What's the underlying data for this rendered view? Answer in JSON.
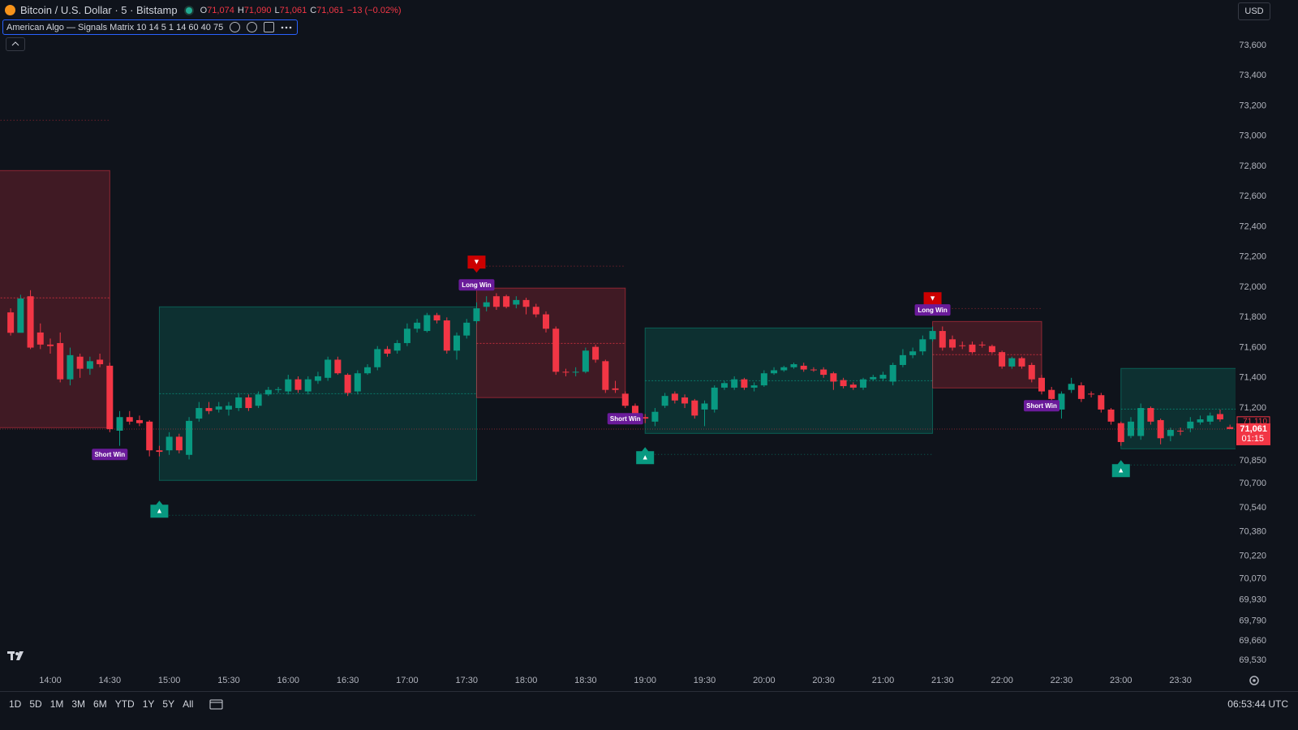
{
  "header": {
    "symbol": "Bitcoin / U.S. Dollar · 5 · Bitstamp",
    "ohlc": [
      {
        "key": "O",
        "value": "71,074"
      },
      {
        "key": "H",
        "value": "71,090"
      },
      {
        "key": "L",
        "value": "71,061"
      },
      {
        "key": "C",
        "value": "71,061"
      }
    ],
    "change": "−13 (−0.02%)",
    "indicator": "American Algo — Signals Matrix 10 14 5 1 14 60 40 75",
    "currency": "USD"
  },
  "footer": {
    "periods": [
      "1D",
      "5D",
      "1M",
      "3M",
      "6M",
      "YTD",
      "1Y",
      "5Y",
      "All"
    ],
    "clock": "06:53:44 UTC"
  },
  "chart_data": {
    "type": "candlestick",
    "up_color": "#089981",
    "down_color": "#f23645",
    "x": [
      "13:40",
      "13:45",
      "13:50",
      "13:55",
      "14:00",
      "14:05",
      "14:10",
      "14:15",
      "14:20",
      "14:25",
      "14:30",
      "14:35",
      "14:40",
      "14:45",
      "14:50",
      "14:55",
      "15:00",
      "15:05",
      "15:10",
      "15:15",
      "15:20",
      "15:25",
      "15:30",
      "15:35",
      "15:40",
      "15:45",
      "15:50",
      "15:55",
      "16:00",
      "16:05",
      "16:10",
      "16:15",
      "16:20",
      "16:25",
      "16:30",
      "16:35",
      "16:40",
      "16:45",
      "16:50",
      "16:55",
      "17:00",
      "17:05",
      "17:10",
      "17:15",
      "17:20",
      "17:25",
      "17:30",
      "17:35",
      "17:40",
      "17:45",
      "17:50",
      "17:55",
      "18:00",
      "18:05",
      "18:10",
      "18:15",
      "18:20",
      "18:25",
      "18:30",
      "18:35",
      "18:40",
      "18:45",
      "18:50",
      "18:55",
      "19:00",
      "19:05",
      "19:10",
      "19:15",
      "19:20",
      "19:25",
      "19:30",
      "19:35",
      "19:40",
      "19:45",
      "19:50",
      "19:55",
      "20:00",
      "20:05",
      "20:10",
      "20:15",
      "20:20",
      "20:25",
      "20:30",
      "20:35",
      "20:40",
      "20:45",
      "20:50",
      "20:55",
      "21:00",
      "21:05",
      "21:10",
      "21:15",
      "21:20",
      "21:25",
      "21:30",
      "21:35",
      "21:40",
      "21:45",
      "21:50",
      "21:55",
      "22:00",
      "22:05",
      "22:10",
      "22:15",
      "22:20",
      "22:25",
      "22:30",
      "22:35",
      "22:40",
      "22:45",
      "22:50",
      "22:55",
      "23:00",
      "23:05",
      "23:10",
      "23:15",
      "23:20",
      "23:25",
      "23:30",
      "23:35",
      "23:40",
      "23:45",
      "23:50",
      "23:55"
    ],
    "open": [
      71833,
      71698,
      71940,
      71700,
      71620,
      71630,
      71390,
      71540,
      71460,
      71520,
      71480,
      71050,
      71140,
      71120,
      71110,
      70920,
      70920,
      71010,
      70890,
      71130,
      71200,
      71190,
      71190,
      71200,
      71270,
      71215,
      71290,
      71320,
      71310,
      71390,
      71310,
      71380,
      71400,
      71520,
      71420,
      71310,
      71430,
      71470,
      71590,
      71580,
      71630,
      71725,
      71710,
      71815,
      71780,
      71580,
      71680,
      71775,
      71870,
      71940,
      71940,
      71885,
      71915,
      71870,
      71820,
      71725,
      71440,
      71435,
      71440,
      71605,
      71510,
      71330,
      71295,
      71215,
      71140,
      71110,
      71215,
      71295,
      71270,
      71250,
      71190,
      71190,
      71335,
      71335,
      71390,
      71335,
      71350,
      71430,
      71450,
      71470,
      71480,
      71455,
      71455,
      71430,
      71385,
      71355,
      71335,
      71390,
      71395,
      71375,
      71485,
      71550,
      71575,
      71655,
      71710,
      71655,
      71615,
      71620,
      71620,
      71610,
      71570,
      71475,
      71530,
      71485,
      71400,
      71320,
      71190,
      71320,
      71350,
      71295,
      71285,
      71190,
      71100,
      71015,
      71015,
      71200,
      71120,
      71015,
      71050,
      71065,
      71105,
      71110,
      71160,
      71074
    ],
    "high": [
      71860,
      71950,
      71980,
      71760,
      71660,
      71700,
      71600,
      71560,
      71540,
      71560,
      71500,
      71180,
      71180,
      71150,
      71120,
      70950,
      71040,
      71030,
      71140,
      71240,
      71240,
      71240,
      71240,
      71300,
      71290,
      71310,
      71340,
      71340,
      71420,
      71410,
      71410,
      71440,
      71540,
      71540,
      71430,
      71450,
      71490,
      71610,
      71610,
      71650,
      71760,
      71790,
      71830,
      71830,
      71800,
      71700,
      71790,
      71900,
      71940,
      71960,
      71950,
      71940,
      71930,
      71890,
      71840,
      71740,
      71460,
      71470,
      71600,
      71620,
      71520,
      71380,
      71310,
      71230,
      71160,
      71200,
      71300,
      71310,
      71290,
      71260,
      71250,
      71350,
      71380,
      71410,
      71400,
      71370,
      71450,
      71470,
      71480,
      71500,
      71500,
      71470,
      71470,
      71440,
      71400,
      71370,
      71400,
      71420,
      71440,
      71500,
      71590,
      71600,
      71680,
      71740,
      71740,
      71680,
      71640,
      71640,
      71640,
      71620,
      71580,
      71540,
      71540,
      71500,
      71420,
      71340,
      71310,
      71400,
      71370,
      71310,
      71300,
      71200,
      71110,
      71140,
      71230,
      71210,
      71130,
      71070,
      71070,
      71140,
      71150,
      71170,
      71190,
      71090
    ],
    "low": [
      71680,
      71700,
      71590,
      71590,
      71560,
      71370,
      71350,
      71400,
      71420,
      71470,
      71040,
      70950,
      71090,
      71080,
      70880,
      70880,
      70890,
      70900,
      70860,
      71110,
      71160,
      71170,
      71150,
      71180,
      71180,
      71200,
      71280,
      71300,
      71290,
      71300,
      71290,
      71360,
      71380,
      71420,
      71280,
      71290,
      71420,
      71450,
      71540,
      71560,
      71610,
      71700,
      71700,
      71760,
      71560,
      71520,
      71660,
      71760,
      71840,
      71850,
      71860,
      71860,
      71820,
      71800,
      71700,
      71420,
      71410,
      71410,
      71430,
      71500,
      71300,
      71300,
      71200,
      71140,
      71100,
      71080,
      71200,
      71230,
      71200,
      71130,
      71080,
      71170,
      71320,
      71320,
      71320,
      71310,
      71340,
      71420,
      71440,
      71460,
      71440,
      71440,
      71400,
      71320,
      71330,
      71320,
      71320,
      71380,
      71380,
      71350,
      71470,
      71530,
      71550,
      71640,
      71580,
      71580,
      71590,
      71560,
      71600,
      71560,
      71460,
      71460,
      71460,
      71370,
      71290,
      71240,
      71130,
      71300,
      71240,
      71270,
      71170,
      71090,
      70950,
      71000,
      70990,
      71090,
      70960,
      70980,
      71020,
      71040,
      71090,
      71090,
      71110,
      71061
    ],
    "close": [
      71698,
      71925,
      71600,
      71620,
      71610,
      71390,
      71550,
      71460,
      71510,
      71490,
      71060,
      71140,
      71110,
      71100,
      70920,
      70910,
      71010,
      70920,
      71115,
      71200,
      71180,
      71210,
      71215,
      71270,
      71200,
      71290,
      71320,
      71325,
      71390,
      71320,
      71390,
      71410,
      71520,
      71430,
      71300,
      71430,
      71470,
      71590,
      71560,
      71630,
      71725,
      71765,
      71815,
      71780,
      71580,
      71680,
      71765,
      71860,
      71900,
      71870,
      71870,
      71915,
      71870,
      71820,
      71725,
      71440,
      71435,
      71440,
      71580,
      71520,
      71320,
      71320,
      71215,
      71160,
      71130,
      71175,
      71280,
      71250,
      71230,
      71150,
      71230,
      71335,
      71365,
      71390,
      71335,
      71350,
      71430,
      71450,
      71470,
      71490,
      71455,
      71450,
      71420,
      71375,
      71345,
      71335,
      71390,
      71405,
      71420,
      71485,
      71550,
      71575,
      71655,
      71710,
      71600,
      71600,
      71610,
      71570,
      71615,
      71570,
      71475,
      71530,
      71475,
      71390,
      71310,
      71260,
      71295,
      71360,
      71260,
      71290,
      71190,
      71110,
      70975,
      71110,
      71200,
      71110,
      71000,
      71055,
      71045,
      71110,
      71125,
      71150,
      71125,
      71061
    ],
    "zones": [
      {
        "start": "13:30",
        "end": "14:30",
        "top": 72772,
        "bottom": 71070,
        "mid": 71929,
        "level": 73105,
        "color": "#f23645"
      },
      {
        "start": "14:55",
        "end": "17:35",
        "top": 71870,
        "bottom": 70721,
        "mid": 71295,
        "level": 70490,
        "color": "#089981"
      },
      {
        "start": "17:35",
        "end": "18:50",
        "top": 71994,
        "bottom": 71269,
        "mid": 71628,
        "level": 72139,
        "color": "#f23645"
      },
      {
        "start": "19:00",
        "end": "21:25",
        "top": 71730,
        "bottom": 71032,
        "mid": 71381,
        "level": 70893,
        "color": "#089981"
      },
      {
        "start": "21:25",
        "end": "22:20",
        "top": 71773,
        "bottom": 71333,
        "mid": 71553,
        "level": 71859,
        "color": "#f23645"
      },
      {
        "start": "23:00",
        "end": "24:00",
        "top": 71462,
        "bottom": 70930,
        "mid": 71193,
        "level": 70823,
        "color": "#089981"
      }
    ],
    "signals": [
      {
        "time": "14:55",
        "price": 70528,
        "marker": "▲",
        "color": "#089981"
      },
      {
        "time": "17:35",
        "price": 72155,
        "marker": "▼",
        "color": "#cc0000"
      },
      {
        "time": "19:00",
        "price": 70882,
        "marker": "▲",
        "color": "#089981"
      },
      {
        "time": "21:25",
        "price": 71913,
        "marker": "▼",
        "color": "#cc0000"
      },
      {
        "time": "23:00",
        "price": 70796,
        "marker": "▲",
        "color": "#089981"
      }
    ],
    "labels": [
      {
        "text": "Short Win",
        "time": "14:30",
        "price": 70893
      },
      {
        "text": "Long Win",
        "time": "17:35",
        "price": 72015
      },
      {
        "text": "Short Win",
        "time": "18:50",
        "price": 71129
      },
      {
        "text": "Long Win",
        "time": "21:25",
        "price": 71849
      },
      {
        "text": "Short Win",
        "time": "22:20",
        "price": 71215
      }
    ],
    "label_color": "#6a1b9a",
    "ylim": [
      69466,
      73901
    ],
    "yticks": [
      {
        "value": 73600,
        "label": "73,600"
      },
      {
        "value": 73400,
        "label": "73,400"
      },
      {
        "value": 73200,
        "label": "73,200"
      },
      {
        "value": 73000,
        "label": "73,000"
      },
      {
        "value": 72800,
        "label": "72,800"
      },
      {
        "value": 72600,
        "label": "72,600"
      },
      {
        "value": 72400,
        "label": "72,400"
      },
      {
        "value": 72200,
        "label": "72,200"
      },
      {
        "value": 72000,
        "label": "72,000"
      },
      {
        "value": 71800,
        "label": "71,800"
      },
      {
        "value": 71600,
        "label": "71,600"
      },
      {
        "value": 71400,
        "label": "71,400"
      },
      {
        "value": 71200,
        "label": "71,200"
      },
      {
        "value": 70850,
        "label": "70,850"
      },
      {
        "value": 70700,
        "label": "70,700"
      },
      {
        "value": 70540,
        "label": "70,540"
      },
      {
        "value": 70380,
        "label": "70,380"
      },
      {
        "value": 70220,
        "label": "70,220"
      },
      {
        "value": 70070,
        "label": "70,070"
      },
      {
        "value": 69930,
        "label": "69,930"
      },
      {
        "value": 69790,
        "label": "69,790"
      },
      {
        "value": 69660,
        "label": "69,660"
      },
      {
        "value": 69530,
        "label": "69,530"
      }
    ],
    "xticks": [
      "14:00",
      "14:30",
      "15:00",
      "15:30",
      "16:00",
      "16:30",
      "17:00",
      "17:30",
      "18:00",
      "18:30",
      "19:00",
      "19:30",
      "20:00",
      "20:30",
      "21:00",
      "21:30",
      "22:00",
      "22:30",
      "23:00",
      "23:30"
    ],
    "price_marker": {
      "value": 71110,
      "label": "71,110"
    },
    "last_price": {
      "value": 71061,
      "label": "71,061"
    },
    "countdown": "01:15"
  }
}
